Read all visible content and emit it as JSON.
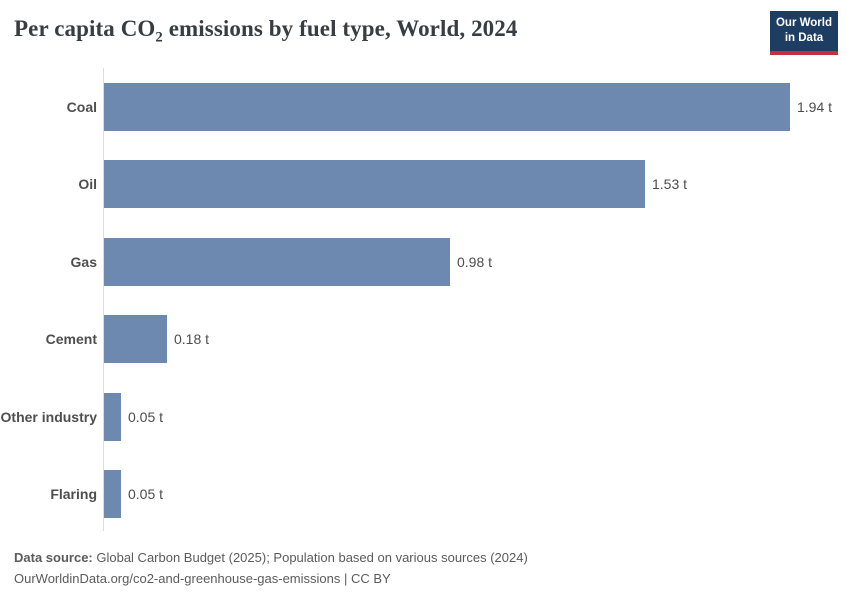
{
  "header": {
    "title_prefix": "Per capita CO",
    "title_sub": "2",
    "title_suffix": " emissions by fuel type, World, 2024",
    "logo": {
      "line1": "Our World",
      "line2": "in Data"
    }
  },
  "chart_data": {
    "type": "bar",
    "orientation": "horizontal",
    "title": "Per capita CO₂ emissions by fuel type, World, 2024",
    "categories": [
      "Coal",
      "Oil",
      "Gas",
      "Cement",
      "Other industry",
      "Flaring"
    ],
    "values": [
      1.94,
      1.53,
      0.98,
      0.18,
      0.05,
      0.05
    ],
    "value_labels": [
      "1.94 t",
      "1.53 t",
      "0.98 t",
      "0.18 t",
      "0.05 t",
      "0.05 t"
    ],
    "unit": "t",
    "xlim": [
      0,
      1.94
    ],
    "grid": false,
    "legend": "none",
    "bar_color": "#6d89b0"
  },
  "footer": {
    "source_label": "Data source:",
    "source_text": " Global Carbon Budget (2025); Population based on various sources (2024)",
    "link_line": "OurWorldinData.org/co2-and-greenhouse-gas-emissions | CC BY"
  },
  "colors": {
    "bar": "#6d89b0",
    "logo_navy": "#1d3d63",
    "logo_red": "#c5303e",
    "title_text": "#383d42",
    "label_text": "#4e4e4e",
    "footer_text": "#5b5b5b",
    "axis_line": "#dcdcdc"
  }
}
